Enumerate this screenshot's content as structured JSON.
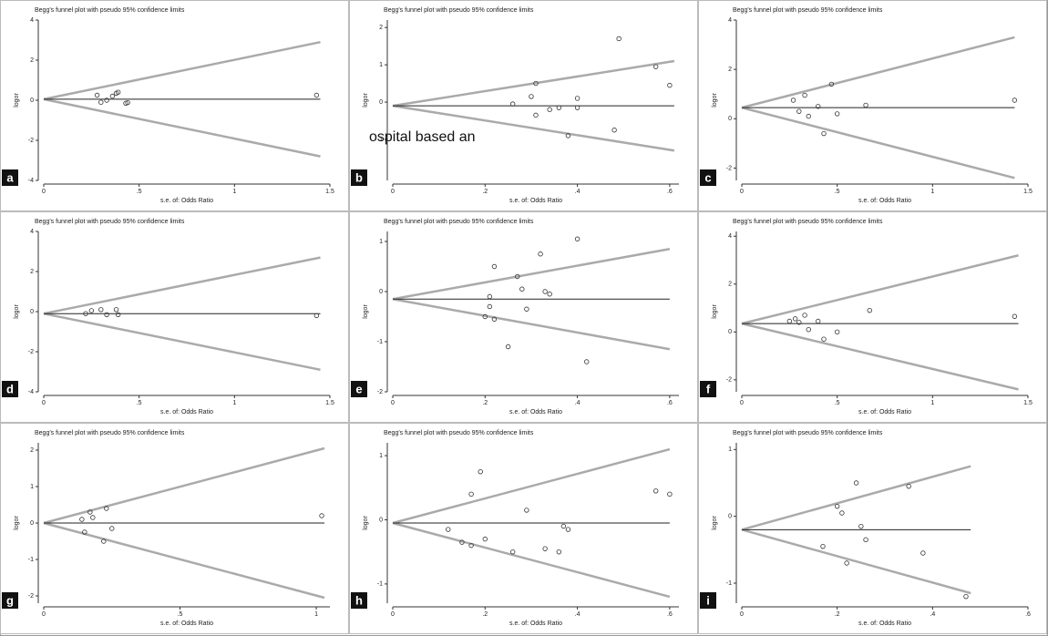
{
  "chart_data": [
    {
      "type": "funnel",
      "panel": "a",
      "title": "Begg's funnel plot with pseudo 95% confidence limits",
      "xlabel": "s.e. of: Odds Ratio",
      "ylabel": "logor",
      "xlim": [
        0,
        1.5
      ],
      "xticks": [
        0,
        {
          "value": 0.5,
          "label": ".5"
        },
        1,
        1.5
      ],
      "ylim": [
        -4,
        4
      ],
      "yticks": [
        -4,
        -2,
        0,
        2,
        4
      ],
      "center": 0.05,
      "line_end": 1.45,
      "upper_end": 2.9,
      "lower_end": -2.8,
      "x": [
        0.28,
        0.3,
        0.33,
        0.36,
        0.38,
        0.39,
        0.43,
        0.44,
        1.43
      ],
      "values": [
        0.25,
        -0.1,
        0,
        0.2,
        0.35,
        0.4,
        -0.15,
        -0.12,
        0.25
      ]
    },
    {
      "type": "funnel",
      "panel": "b",
      "title": "Begg's funnel plot with pseudo 95% confidence limits",
      "xlabel": "s.e. of: Odds Ratio",
      "ylabel": "logor",
      "xlim": [
        0,
        0.62
      ],
      "xticks": [
        0,
        {
          "value": 0.2,
          "label": ".2"
        },
        {
          "value": 0.4,
          "label": ".4"
        },
        {
          "value": 0.6,
          "label": ".6"
        }
      ],
      "ylim": [
        -2.1,
        2.2
      ],
      "yticks": [
        -1,
        0,
        1,
        2
      ],
      "center": -0.1,
      "line_end": 0.61,
      "upper_end": 1.1,
      "lower_end": -1.3,
      "x": [
        0.26,
        0.3,
        0.31,
        0.31,
        0.34,
        0.36,
        0.38,
        0.4,
        0.4,
        0.48,
        0.49,
        0.57,
        0.6
      ],
      "values": [
        -0.05,
        0.15,
        0.5,
        -0.35,
        -0.2,
        -0.15,
        -0.9,
        0.1,
        -0.15,
        -0.75,
        1.7,
        0.95,
        0.45
      ],
      "overlay_text": "ospital based an"
    },
    {
      "type": "funnel",
      "panel": "c",
      "title": "Begg's funnel plot with pseudo 95% confidence limits",
      "xlabel": "s.e. of: Odds Ratio",
      "ylabel": "logor",
      "xlim": [
        0,
        1.5
      ],
      "xticks": [
        0,
        {
          "value": 0.5,
          "label": ".5"
        },
        1,
        1.5
      ],
      "ylim": [
        -2.5,
        4
      ],
      "yticks": [
        -2,
        0,
        2,
        4
      ],
      "center": 0.45,
      "line_end": 1.43,
      "upper_end": 3.3,
      "lower_end": -2.4,
      "x": [
        0.27,
        0.3,
        0.33,
        0.35,
        0.4,
        0.43,
        0.47,
        0.5,
        0.65,
        1.43
      ],
      "values": [
        0.75,
        0.3,
        0.95,
        0.1,
        0.5,
        -0.6,
        1.4,
        0.2,
        0.55,
        0.75
      ]
    },
    {
      "type": "funnel",
      "panel": "d",
      "title": "Begg's funnel plot with pseudo 95% confidence limits",
      "xlabel": "s.e. of: Odds Ratio",
      "ylabel": "logor",
      "xlim": [
        0,
        1.5
      ],
      "xticks": [
        0,
        {
          "value": 0.5,
          "label": ".5"
        },
        1,
        1.5
      ],
      "ylim": [
        -4,
        4
      ],
      "yticks": [
        -4,
        -2,
        0,
        2,
        4
      ],
      "center": -0.1,
      "line_end": 1.45,
      "upper_end": 2.7,
      "lower_end": -2.9,
      "x": [
        0.22,
        0.25,
        0.3,
        0.33,
        0.38,
        0.39,
        1.43
      ],
      "values": [
        -0.1,
        0.05,
        0.1,
        -0.15,
        0.1,
        -0.15,
        -0.2
      ]
    },
    {
      "type": "funnel",
      "panel": "e",
      "title": "Begg's funnel plot with pseudo 95% confidence limits",
      "xlabel": "s.e. of: Odds Ratio",
      "ylabel": "logor",
      "xlim": [
        0,
        0.62
      ],
      "xticks": [
        0,
        {
          "value": 0.2,
          "label": ".2"
        },
        {
          "value": 0.4,
          "label": ".4"
        },
        {
          "value": 0.6,
          "label": ".6"
        }
      ],
      "ylim": [
        -2,
        1.2
      ],
      "yticks": [
        -2,
        -1,
        0,
        1
      ],
      "center": -0.15,
      "line_end": 0.6,
      "upper_end": 0.85,
      "lower_end": -1.15,
      "x": [
        0.2,
        0.21,
        0.21,
        0.22,
        0.22,
        0.25,
        0.27,
        0.28,
        0.29,
        0.32,
        0.33,
        0.34,
        0.4,
        0.42
      ],
      "values": [
        -0.5,
        -0.1,
        -0.3,
        0.5,
        -0.55,
        -1.1,
        0.3,
        0.05,
        -0.35,
        0.75,
        0,
        -0.05,
        1.05,
        -1.4
      ]
    },
    {
      "type": "funnel",
      "panel": "f",
      "title": "Begg's funnel plot with pseudo 95% confidence limits",
      "xlabel": "s.e. of: Odds Ratio",
      "ylabel": "logor",
      "xlim": [
        0,
        1.5
      ],
      "xticks": [
        0,
        {
          "value": 0.5,
          "label": ".5"
        },
        1,
        1.5
      ],
      "ylim": [
        -2.5,
        4.2
      ],
      "yticks": [
        -2,
        0,
        2,
        4
      ],
      "center": 0.35,
      "line_end": 1.45,
      "upper_end": 3.2,
      "lower_end": -2.4,
      "x": [
        0.25,
        0.28,
        0.3,
        0.33,
        0.35,
        0.4,
        0.43,
        0.5,
        0.67,
        1.43
      ],
      "values": [
        0.45,
        0.55,
        0.4,
        0.7,
        0.1,
        0.45,
        -0.3,
        0,
        0.9,
        0.65
      ]
    },
    {
      "type": "funnel",
      "panel": "g",
      "title": "Begg's funnel plot with pseudo 95% confidence limits",
      "xlabel": "s.e. of: Odds Ratio",
      "ylabel": "logor",
      "xlim": [
        0,
        1.05
      ],
      "xticks": [
        0,
        {
          "value": 0.5,
          "label": ".5"
        },
        1
      ],
      "ylim": [
        -2.2,
        2.2
      ],
      "yticks": [
        -2,
        -1,
        0,
        1,
        2
      ],
      "center": 0,
      "line_end": 1.03,
      "upper_end": 2.05,
      "lower_end": -2.05,
      "x": [
        0.14,
        0.15,
        0.17,
        0.18,
        0.22,
        0.23,
        0.25,
        1.02
      ],
      "values": [
        0.1,
        -0.25,
        0.3,
        0.15,
        -0.5,
        0.4,
        -0.15,
        0.2
      ]
    },
    {
      "type": "funnel",
      "panel": "h",
      "title": "Begg's funnel plot with pseudo 95% confidence limits",
      "xlabel": "s.e. of: Odds Ratio",
      "ylabel": "logor",
      "xlim": [
        0,
        0.62
      ],
      "xticks": [
        0,
        {
          "value": 0.2,
          "label": ".2"
        },
        {
          "value": 0.4,
          "label": ".4"
        },
        {
          "value": 0.6,
          "label": ".6"
        }
      ],
      "ylim": [
        -1.3,
        1.2
      ],
      "yticks": [
        -1,
        0,
        1
      ],
      "center": -0.05,
      "line_end": 0.6,
      "upper_end": 1.1,
      "lower_end": -1.2,
      "x": [
        0.12,
        0.15,
        0.17,
        0.17,
        0.19,
        0.2,
        0.26,
        0.29,
        0.33,
        0.36,
        0.37,
        0.38,
        0.57,
        0.6
      ],
      "values": [
        -0.15,
        -0.35,
        0.4,
        -0.4,
        0.75,
        -0.3,
        -0.5,
        0.15,
        -0.45,
        -0.5,
        -0.1,
        -0.15,
        0.45,
        0.4
      ]
    },
    {
      "type": "funnel",
      "panel": "i",
      "title": "Begg's funnel plot with pseudo 95% confidence limits",
      "xlabel": "s.e. of: Odds Ratio",
      "ylabel": "logor",
      "xlim": [
        0,
        0.6
      ],
      "xticks": [
        0,
        {
          "value": 0.2,
          "label": ".2"
        },
        {
          "value": 0.4,
          "label": ".4"
        },
        {
          "value": 0.6,
          "label": ".6"
        }
      ],
      "ylim": [
        -1.3,
        1.1
      ],
      "yticks": [
        -1,
        0,
        1
      ],
      "center": -0.2,
      "line_end": 0.48,
      "upper_end": 0.75,
      "lower_end": -1.15,
      "x": [
        0.17,
        0.2,
        0.21,
        0.22,
        0.24,
        0.25,
        0.26,
        0.35,
        0.38,
        0.47
      ],
      "values": [
        -0.45,
        0.15,
        0.05,
        -0.7,
        0.5,
        -0.15,
        -0.35,
        0.45,
        -0.55,
        -1.2
      ]
    }
  ]
}
